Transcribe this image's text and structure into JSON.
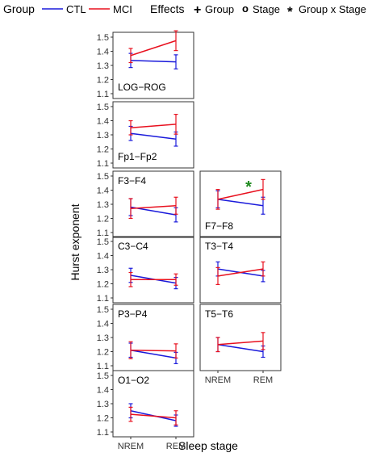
{
  "legend": {
    "group_title": "Group",
    "group_items": [
      {
        "label": "CTL",
        "color": "#1a1adb"
      },
      {
        "label": "MCI",
        "color": "#e8101e"
      }
    ],
    "effects_title": "Effects",
    "effect_items": [
      {
        "symbol": "+",
        "label": "Group"
      },
      {
        "symbol": "o",
        "label": "Stage"
      },
      {
        "symbol": "*",
        "label": "Group x Stage"
      }
    ],
    "effect_color": "#1f8a1f"
  },
  "chart_data": {
    "type": "line",
    "x_categories": [
      "NREM",
      "REM"
    ],
    "xlabel": "Sleep stage",
    "ylabel": "Hurst exponent",
    "ylim": [
      1.1,
      1.5
    ],
    "yticks": [
      1.1,
      1.2,
      1.3,
      1.4,
      1.5
    ],
    "grid": false,
    "panels": [
      {
        "label": "LOG−ROG",
        "series": [
          {
            "name": "CTL",
            "values": [
              1.335,
              1.325
            ],
            "err": [
              0.05,
              0.05
            ]
          },
          {
            "name": "MCI",
            "values": [
              1.37,
              1.475
            ],
            "err": [
              0.05,
              0.07
            ]
          }
        ]
      },
      {
        "label": "Fp1−Fp2",
        "series": [
          {
            "name": "CTL",
            "values": [
              1.31,
              1.27
            ],
            "err": [
              0.05,
              0.05
            ]
          },
          {
            "name": "MCI",
            "values": [
              1.35,
              1.375
            ],
            "err": [
              0.05,
              0.07
            ]
          }
        ]
      },
      {
        "label": "F3−F4",
        "series": [
          {
            "name": "CTL",
            "values": [
              1.28,
              1.225
            ],
            "err": [
              0.06,
              0.05
            ]
          },
          {
            "name": "MCI",
            "values": [
              1.27,
              1.29
            ],
            "err": [
              0.07,
              0.06
            ]
          }
        ]
      },
      {
        "label": "C3−C4",
        "series": [
          {
            "name": "CTL",
            "values": [
              1.26,
              1.205
            ],
            "err": [
              0.05,
              0.04
            ]
          },
          {
            "name": "MCI",
            "values": [
              1.23,
              1.23
            ],
            "err": [
              0.05,
              0.04
            ]
          }
        ]
      },
      {
        "label": "P3−P4",
        "series": [
          {
            "name": "CTL",
            "values": [
              1.21,
              1.155
            ],
            "err": [
              0.05,
              0.04
            ]
          },
          {
            "name": "MCI",
            "values": [
              1.21,
              1.205
            ],
            "err": [
              0.06,
              0.05
            ]
          }
        ]
      },
      {
        "label": "O1−O2",
        "series": [
          {
            "name": "CTL",
            "values": [
              1.25,
              1.18
            ],
            "err": [
              0.05,
              0.04
            ]
          },
          {
            "name": "MCI",
            "values": [
              1.225,
              1.2
            ],
            "err": [
              0.05,
              0.05
            ]
          }
        ]
      },
      {
        "label": "F7−F8",
        "annotation": "*",
        "series": [
          {
            "name": "CTL",
            "values": [
              1.335,
              1.29
            ],
            "err": [
              0.06,
              0.06
            ]
          },
          {
            "name": "MCI",
            "values": [
              1.335,
              1.405
            ],
            "err": [
              0.07,
              0.07
            ]
          }
        ]
      },
      {
        "label": "T3−T4",
        "series": [
          {
            "name": "CTL",
            "values": [
              1.305,
              1.255
            ],
            "err": [
              0.05,
              0.04
            ]
          },
          {
            "name": "MCI",
            "values": [
              1.255,
              1.305
            ],
            "err": [
              0.06,
              0.05
            ]
          }
        ]
      },
      {
        "label": "T5−T6",
        "series": [
          {
            "name": "CTL",
            "values": [
              1.25,
              1.2
            ],
            "err": [
              0.05,
              0.04
            ]
          },
          {
            "name": "MCI",
            "values": [
              1.25,
              1.275
            ],
            "err": [
              0.05,
              0.06
            ]
          }
        ]
      }
    ]
  }
}
